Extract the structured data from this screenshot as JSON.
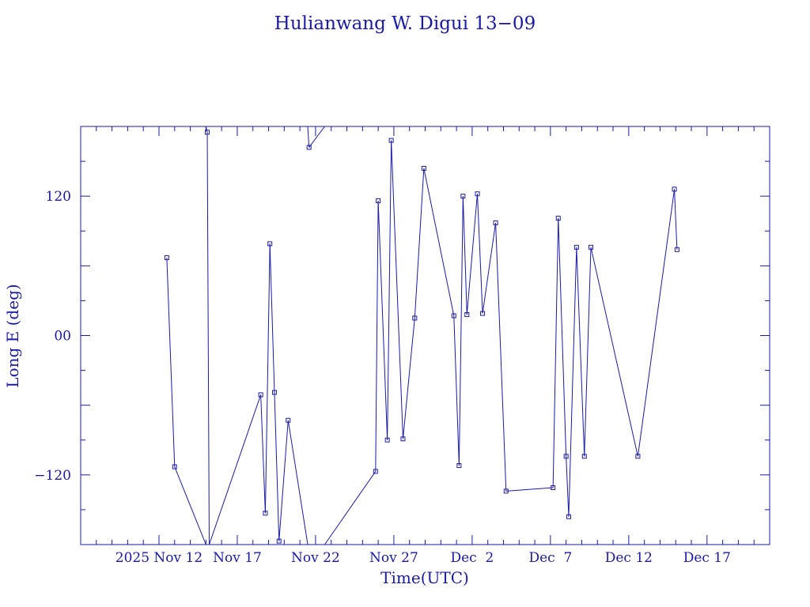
{
  "chart_data": {
    "type": "line",
    "title": "Hulianwang W. Digui 13−09",
    "xlabel": "Time(UTC)",
    "ylabel": "Long E (deg)",
    "colors": {
      "axis": "#1a1aa6",
      "series": "#1a1aa6"
    },
    "xlim": [
      "2025-11-07T00:00",
      "2025-12-21T00:00"
    ],
    "ylim": [
      -180,
      180
    ],
    "x_ticks": [
      "2025 Nov 12",
      "Nov 17",
      "Nov 22",
      "Nov 27",
      "Dec  2",
      "Dec  7",
      "Dec 12",
      "Dec 17"
    ],
    "y_ticks": [
      "−120",
      "00",
      "120"
    ],
    "grid": false,
    "wrap": "longitude wraps at ±180",
    "series": [
      {
        "points": [
          {
            "x": "2025-11-12T12:00",
            "y": 67
          },
          {
            "x": "2025-11-13T00:00",
            "y": -113
          },
          {
            "x": "2025-11-15T00:00",
            "y": -180
          },
          {
            "x": "2025-11-15T00:00",
            "y": 180
          },
          {
            "x": "2025-11-15T02:00",
            "y": 175
          },
          {
            "x": "2025-11-15T05:00",
            "y": -180
          },
          {
            "x": "2025-11-18T12:00",
            "y": -51
          },
          {
            "x": "2025-11-18T19:00",
            "y": -153
          },
          {
            "x": "2025-11-19T02:00",
            "y": 79
          },
          {
            "x": "2025-11-19T09:00",
            "y": -49
          },
          {
            "x": "2025-11-19T16:00",
            "y": -177
          },
          {
            "x": "2025-11-20T06:00",
            "y": -73
          },
          {
            "x": "2025-11-21T12:00",
            "y": -180
          },
          {
            "x": "2025-11-21T12:00",
            "y": 180
          },
          {
            "x": "2025-11-21T14:00",
            "y": 162
          },
          {
            "x": "2025-11-22T14:00",
            "y": 180
          },
          {
            "x": "2025-11-22T14:00",
            "y": -180
          },
          {
            "x": "2025-11-25T20:00",
            "y": -117
          },
          {
            "x": "2025-11-26T00:00",
            "y": 116
          },
          {
            "x": "2025-11-26T14:00",
            "y": -90
          },
          {
            "x": "2025-11-26T20:00",
            "y": 168
          },
          {
            "x": "2025-11-27T14:00",
            "y": -89
          },
          {
            "x": "2025-11-28T08:00",
            "y": 15
          },
          {
            "x": "2025-11-28T22:00",
            "y": 144
          },
          {
            "x": "2025-11-30T20:00",
            "y": 17
          },
          {
            "x": "2025-12-01T04:00",
            "y": -112
          },
          {
            "x": "2025-12-01T10:00",
            "y": 120
          },
          {
            "x": "2025-12-01T16:00",
            "y": 18
          },
          {
            "x": "2025-12-02T08:00",
            "y": 122
          },
          {
            "x": "2025-12-02T16:00",
            "y": 19
          },
          {
            "x": "2025-12-03T12:00",
            "y": 97
          },
          {
            "x": "2025-12-04T04:00",
            "y": -134
          },
          {
            "x": "2025-12-07T04:00",
            "y": -131
          },
          {
            "x": "2025-12-07T12:00",
            "y": 101
          },
          {
            "x": "2025-12-08T00:00",
            "y": -104
          },
          {
            "x": "2025-12-08T04:00",
            "y": -156
          },
          {
            "x": "2025-12-08T16:00",
            "y": 76
          },
          {
            "x": "2025-12-09T04:00",
            "y": -104
          },
          {
            "x": "2025-12-09T14:00",
            "y": 76
          },
          {
            "x": "2025-12-12T14:00",
            "y": -104
          },
          {
            "x": "2025-12-14T22:00",
            "y": 126
          },
          {
            "x": "2025-12-15T02:00",
            "y": 74
          }
        ]
      }
    ]
  }
}
